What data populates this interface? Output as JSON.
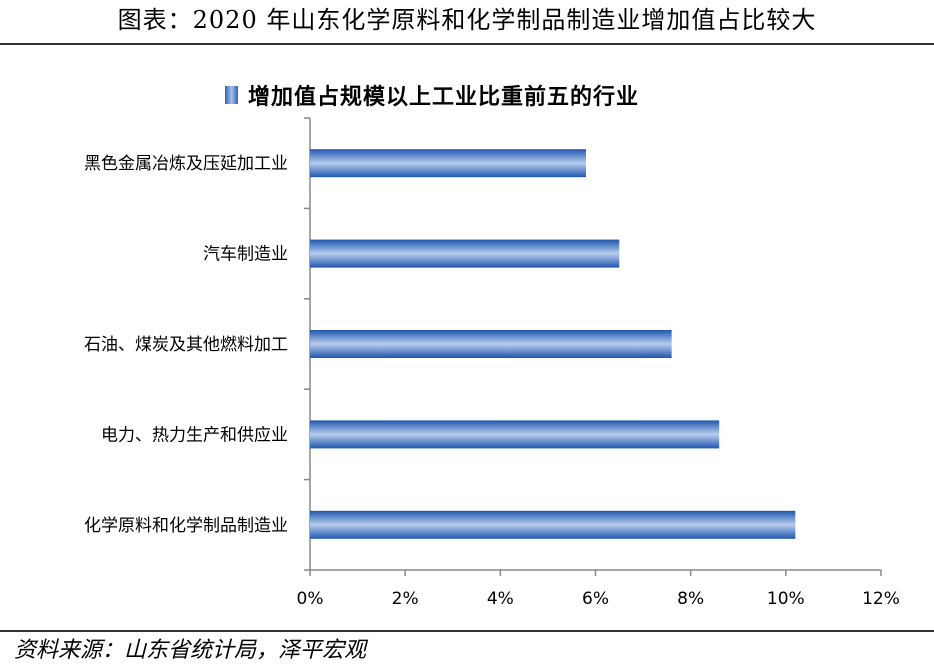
{
  "header": {
    "title": "图表：2020 年山东化学原料和化学制品制造业增加值占比较大"
  },
  "source": "资料来源：山东省统计局，泽平宏观",
  "chart_data": {
    "type": "bar",
    "orientation": "horizontal",
    "title": "",
    "categories": [
      "黑色金属冶炼及压延加工业",
      "汽车制造业",
      "石油、煤炭及其他燃料加工",
      "电力、热力生产和供应业",
      "化学原料和化学制品制造业"
    ],
    "series": [
      {
        "name": "增加值占规模以上工业比重前五的行业",
        "values": [
          5.8,
          6.5,
          7.6,
          8.6,
          10.2
        ],
        "color": "#2f64b6"
      }
    ],
    "x_ticks": [
      "0%",
      "2%",
      "4%",
      "6%",
      "8%",
      "10%",
      "12%"
    ],
    "xlim": [
      0,
      12
    ],
    "unit": "%",
    "legend_position": "top",
    "grid": false
  }
}
